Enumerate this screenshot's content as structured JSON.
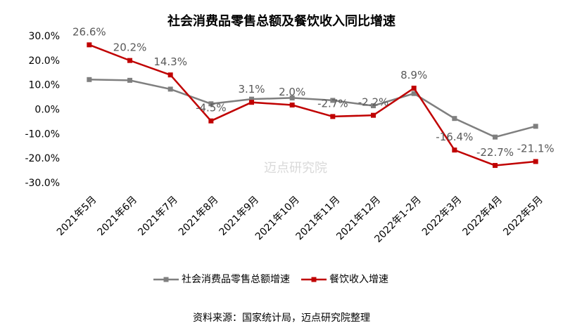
{
  "chart_data": {
    "type": "line",
    "title": "社会消费品零售总额及餐饮收入同比增速",
    "categories": [
      "2021年5月",
      "2021年6月",
      "2021年7月",
      "2021年8月",
      "2021年9月",
      "2021年10月",
      "2021年11月",
      "2021年12月",
      "2022年1-2月",
      "2022年3月",
      "2022年4月",
      "2022年5月"
    ],
    "series": [
      {
        "name": "社会消费品零售总额增速",
        "color": "#7f7f7f",
        "values": [
          12.4,
          12.1,
          8.5,
          2.5,
          4.4,
          4.9,
          3.9,
          1.7,
          6.7,
          -3.5,
          -11.1,
          -6.7
        ]
      },
      {
        "name": "餐饮收入增速",
        "color": "#c00000",
        "values": [
          26.6,
          20.2,
          14.3,
          -4.5,
          3.1,
          2.0,
          -2.7,
          -2.2,
          8.9,
          -16.4,
          -22.7,
          -21.1
        ],
        "value_labels": [
          "26.6%",
          "20.2%",
          "14.3%",
          "-4.5%",
          "3.1%",
          "2.0%",
          "-2.7%",
          "-2.2%",
          "8.9%",
          "-16.4%",
          "-22.7%",
          "-21.1%"
        ]
      }
    ],
    "ylim": [
      -30,
      30
    ],
    "yticks": [
      {
        "value": 30,
        "label": "30.0%"
      },
      {
        "value": 20,
        "label": "20.0%"
      },
      {
        "value": 10,
        "label": "10.0%"
      },
      {
        "value": 0,
        "label": "0.0%"
      },
      {
        "value": -10,
        "label": "-10.0%"
      },
      {
        "value": -20,
        "label": "-20.0%"
      },
      {
        "value": -30,
        "label": "-30.0%"
      }
    ],
    "legend": "bottom",
    "watermark": "迈点研究院",
    "source": "资料来源：国家统计局，迈点研究院整理"
  }
}
